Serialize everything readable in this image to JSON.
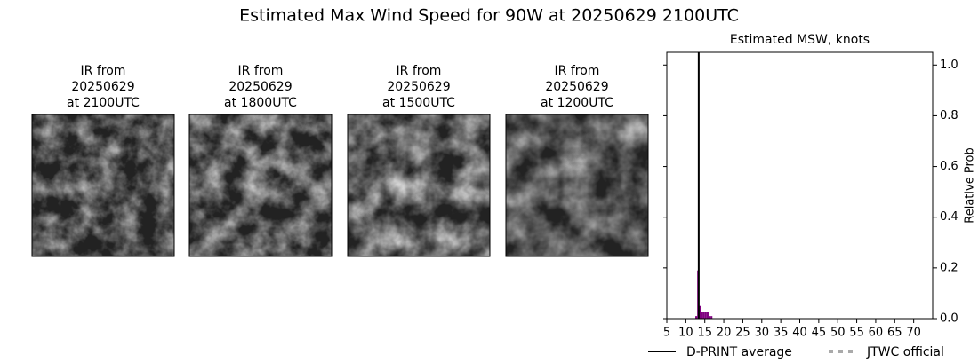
{
  "title": "Estimated Max Wind Speed for 90W at 20250629 2100UTC",
  "panels": [
    {
      "lines": [
        "IR from",
        "20250629",
        "at 2100UTC"
      ]
    },
    {
      "lines": [
        "IR from",
        "20250629",
        "at 1800UTC"
      ]
    },
    {
      "lines": [
        "IR from",
        "20250629",
        "at 1500UTC"
      ]
    },
    {
      "lines": [
        "IR from",
        "20250629",
        "at 1200UTC"
      ]
    }
  ],
  "chart_data": {
    "type": "histogram",
    "title": "Estimated MSW, knots",
    "ylabel": "Relative Prob",
    "bins": [
      12.5,
      13,
      13.5,
      14,
      14.5,
      15,
      15.5,
      16,
      16.5,
      17
    ],
    "values": [
      0.01,
      0.19,
      0.05,
      0.025,
      0.025,
      0.025,
      0.025,
      0.01,
      0.01
    ],
    "color": "#800080",
    "xlim": [
      5,
      75
    ],
    "xticks": [
      5,
      10,
      15,
      20,
      25,
      30,
      35,
      40,
      45,
      50,
      55,
      60,
      65,
      70
    ],
    "ylim": [
      0,
      1.05
    ],
    "yticks": [
      {
        "value": 0,
        "label": "0.0"
      },
      0.2,
      0.4,
      0.6,
      0.8,
      {
        "value": 1,
        "label": "1.0"
      }
    ],
    "reference_lines": [
      {
        "name": "D-PRINT average",
        "color": "#000000",
        "style": "solid",
        "x": 13.4
      },
      {
        "name": "JTWC official",
        "color": "#aaaaaa",
        "style": "dotted",
        "x": null
      }
    ]
  }
}
